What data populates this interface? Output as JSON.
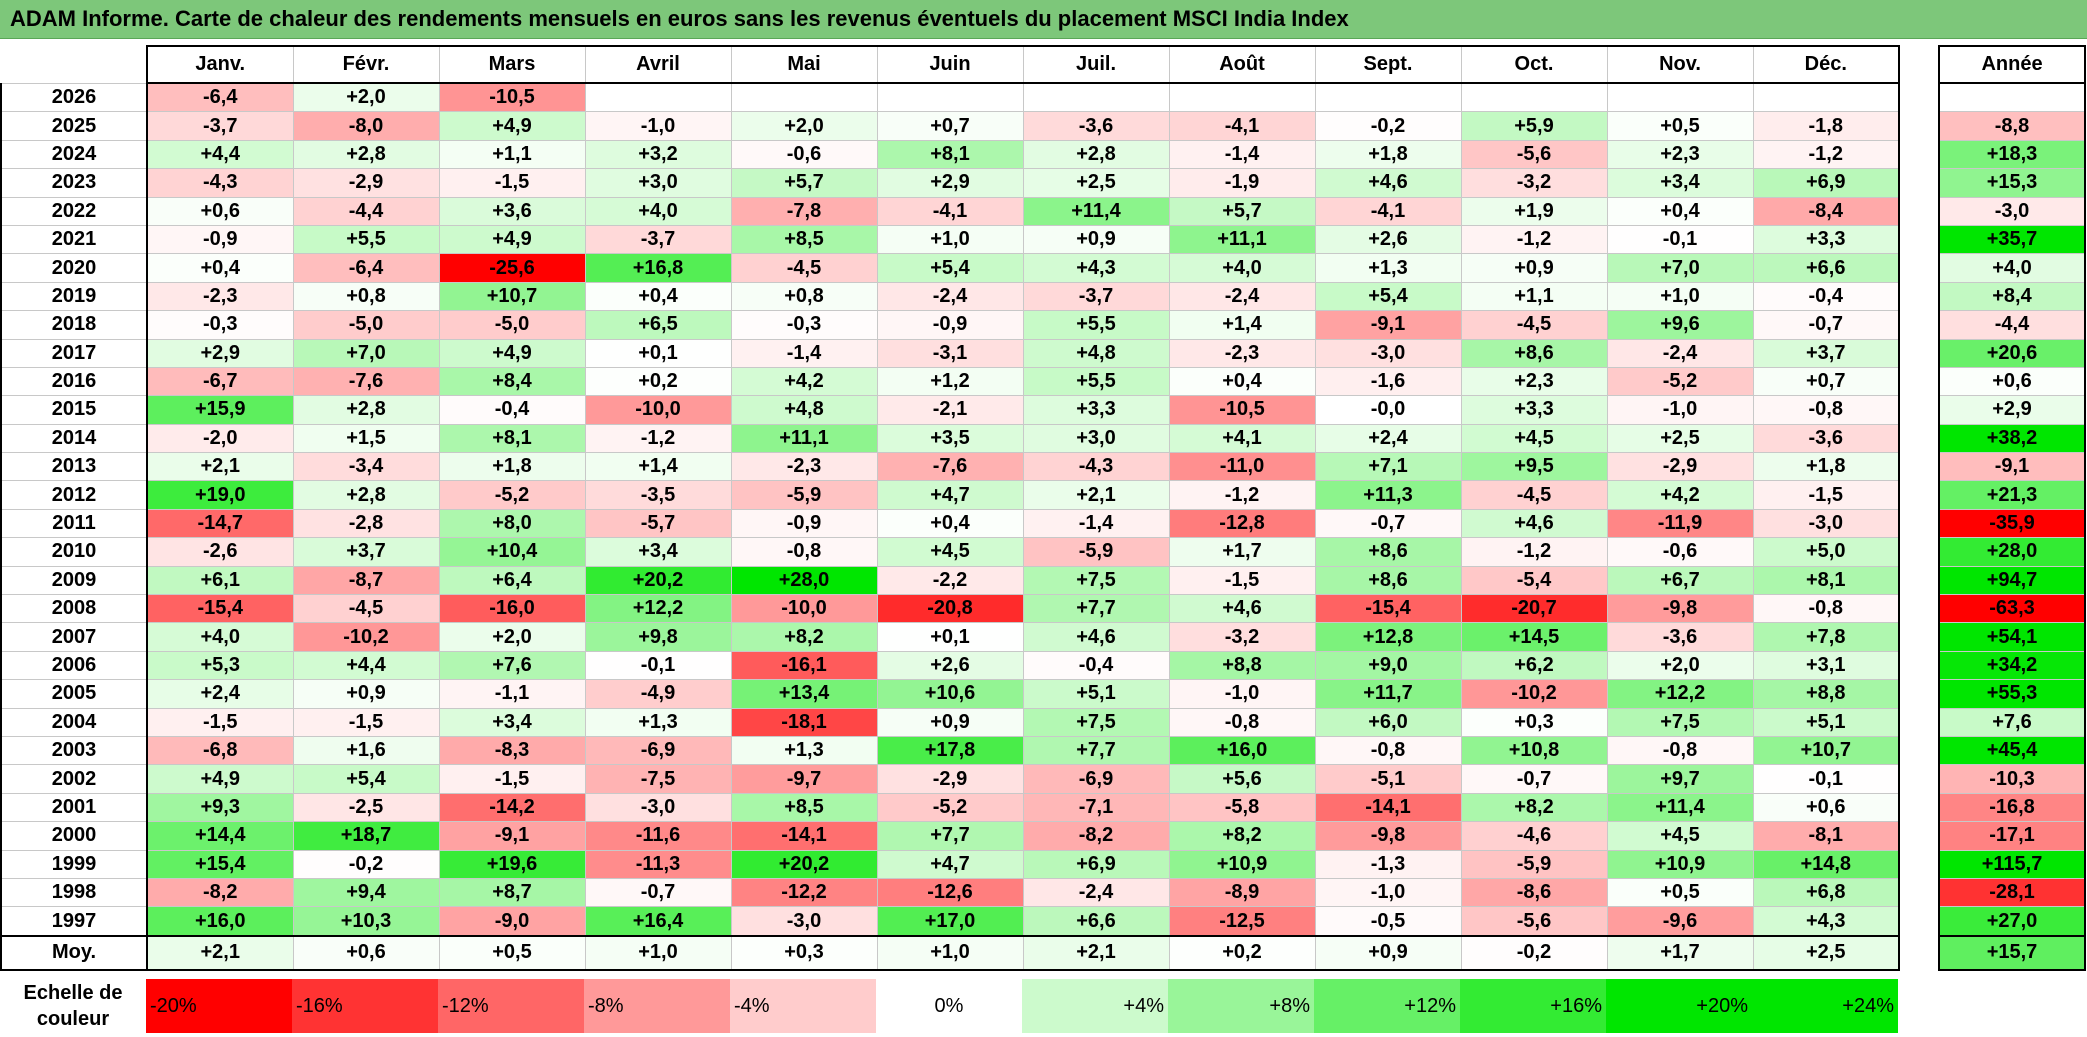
{
  "title": "ADAM Informe. Carte de chaleur des rendements mensuels en euros sans les revenus éventuels du placement MSCI India Index",
  "year_header": "Année",
  "average_label": "Moy.",
  "scale_label": "Echelle de couleur",
  "colors": {
    "title_bg": "#7dc77a",
    "negative_max": "#ff0000",
    "neutral": "#ffffff",
    "positive_max": "#00e600"
  },
  "chart_data": {
    "type": "heatmap",
    "title": "ADAM Informe. Carte de chaleur des rendements mensuels en euros sans les revenus éventuels du placement MSCI India Index",
    "months": [
      "Janv.",
      "Févr.",
      "Mars",
      "Avril",
      "Mai",
      "Juin",
      "Juil.",
      "Août",
      "Sept.",
      "Oct.",
      "Nov.",
      "Déc."
    ],
    "years": [
      "2026",
      "2025",
      "2024",
      "2023",
      "2022",
      "2021",
      "2020",
      "2019",
      "2018",
      "2017",
      "2016",
      "2015",
      "2014",
      "2013",
      "2012",
      "2011",
      "2010",
      "2009",
      "2008",
      "2007",
      "2006",
      "2005",
      "2004",
      "2003",
      "2002",
      "2001",
      "2000",
      "1999",
      "1998",
      "1997"
    ],
    "values": [
      [
        "-6,4",
        "+2,0",
        "-10,5",
        "",
        "",
        "",
        "",
        "",
        "",
        "",
        "",
        ""
      ],
      [
        "-3,7",
        "-8,0",
        "+4,9",
        "-1,0",
        "+2,0",
        "+0,7",
        "-3,6",
        "-4,1",
        "-0,2",
        "+5,9",
        "+0,5",
        "-1,8"
      ],
      [
        "+4,4",
        "+2,8",
        "+1,1",
        "+3,2",
        "-0,6",
        "+8,1",
        "+2,8",
        "-1,4",
        "+1,8",
        "-5,6",
        "+2,3",
        "-1,2"
      ],
      [
        "-4,3",
        "-2,9",
        "-1,5",
        "+3,0",
        "+5,7",
        "+2,9",
        "+2,5",
        "-1,9",
        "+4,6",
        "-3,2",
        "+3,4",
        "+6,9"
      ],
      [
        "+0,6",
        "-4,4",
        "+3,6",
        "+4,0",
        "-7,8",
        "-4,1",
        "+11,4",
        "+5,7",
        "-4,1",
        "+1,9",
        "+0,4",
        "-8,4"
      ],
      [
        "-0,9",
        "+5,5",
        "+4,9",
        "-3,7",
        "+8,5",
        "+1,0",
        "+0,9",
        "+11,1",
        "+2,6",
        "-1,2",
        "-0,1",
        "+3,3"
      ],
      [
        "+0,4",
        "-6,4",
        "-25,6",
        "+16,8",
        "-4,5",
        "+5,4",
        "+4,3",
        "+4,0",
        "+1,3",
        "+0,9",
        "+7,0",
        "+6,6"
      ],
      [
        "-2,3",
        "+0,8",
        "+10,7",
        "+0,4",
        "+0,8",
        "-2,4",
        "-3,7",
        "-2,4",
        "+5,4",
        "+1,1",
        "+1,0",
        "-0,4"
      ],
      [
        "-0,3",
        "-5,0",
        "-5,0",
        "+6,5",
        "-0,3",
        "-0,9",
        "+5,5",
        "+1,4",
        "-9,1",
        "-4,5",
        "+9,6",
        "-0,7"
      ],
      [
        "+2,9",
        "+7,0",
        "+4,9",
        "+0,1",
        "-1,4",
        "-3,1",
        "+4,8",
        "-2,3",
        "-3,0",
        "+8,6",
        "-2,4",
        "+3,7"
      ],
      [
        "-6,7",
        "-7,6",
        "+8,4",
        "+0,2",
        "+4,2",
        "+1,2",
        "+5,5",
        "+0,4",
        "-1,6",
        "+2,3",
        "-5,2",
        "+0,7"
      ],
      [
        "+15,9",
        "+2,8",
        "-0,4",
        "-10,0",
        "+4,8",
        "-2,1",
        "+3,3",
        "-10,5",
        "-0,0",
        "+3,3",
        "-1,0",
        "-0,8"
      ],
      [
        "-2,0",
        "+1,5",
        "+8,1",
        "-1,2",
        "+11,1",
        "+3,5",
        "+3,0",
        "+4,1",
        "+2,4",
        "+4,5",
        "+2,5",
        "-3,6"
      ],
      [
        "+2,1",
        "-3,4",
        "+1,8",
        "+1,4",
        "-2,3",
        "-7,6",
        "-4,3",
        "-11,0",
        "+7,1",
        "+9,5",
        "-2,9",
        "+1,8"
      ],
      [
        "+19,0",
        "+2,8",
        "-5,2",
        "-3,5",
        "-5,9",
        "+4,7",
        "+2,1",
        "-1,2",
        "+11,3",
        "-4,5",
        "+4,2",
        "-1,5"
      ],
      [
        "-14,7",
        "-2,8",
        "+8,0",
        "-5,7",
        "-0,9",
        "+0,4",
        "-1,4",
        "-12,8",
        "-0,7",
        "+4,6",
        "-11,9",
        "-3,0"
      ],
      [
        "-2,6",
        "+3,7",
        "+10,4",
        "+3,4",
        "-0,8",
        "+4,5",
        "-5,9",
        "+1,7",
        "+8,6",
        "-1,2",
        "-0,6",
        "+5,0"
      ],
      [
        "+6,1",
        "-8,7",
        "+6,4",
        "+20,2",
        "+28,0",
        "-2,2",
        "+7,5",
        "-1,5",
        "+8,6",
        "-5,4",
        "+6,7",
        "+8,1"
      ],
      [
        "-15,4",
        "-4,5",
        "-16,0",
        "+12,2",
        "-10,0",
        "-20,8",
        "+7,7",
        "+4,6",
        "-15,4",
        "-20,7",
        "-9,8",
        "-0,8"
      ],
      [
        "+4,0",
        "-10,2",
        "+2,0",
        "+9,8",
        "+8,2",
        "+0,1",
        "+4,6",
        "-3,2",
        "+12,8",
        "+14,5",
        "-3,6",
        "+7,8"
      ],
      [
        "+5,3",
        "+4,4",
        "+7,6",
        "-0,1",
        "-16,1",
        "+2,6",
        "-0,4",
        "+8,8",
        "+9,0",
        "+6,2",
        "+2,0",
        "+3,1"
      ],
      [
        "+2,4",
        "+0,9",
        "-1,1",
        "-4,9",
        "+13,4",
        "+10,6",
        "+5,1",
        "-1,0",
        "+11,7",
        "-10,2",
        "+12,2",
        "+8,8"
      ],
      [
        "-1,5",
        "-1,5",
        "+3,4",
        "+1,3",
        "-18,1",
        "+0,9",
        "+7,5",
        "-0,8",
        "+6,0",
        "+0,3",
        "+7,5",
        "+5,1"
      ],
      [
        "-6,8",
        "+1,6",
        "-8,3",
        "-6,9",
        "+1,3",
        "+17,8",
        "+7,7",
        "+16,0",
        "-0,8",
        "+10,8",
        "-0,8",
        "+10,7"
      ],
      [
        "+4,9",
        "+5,4",
        "-1,5",
        "-7,5",
        "-9,7",
        "-2,9",
        "-6,9",
        "+5,6",
        "-5,1",
        "-0,7",
        "+9,7",
        "-0,1"
      ],
      [
        "+9,3",
        "-2,5",
        "-14,2",
        "-3,0",
        "+8,5",
        "-5,2",
        "-7,1",
        "-5,8",
        "-14,1",
        "+8,2",
        "+11,4",
        "+0,6"
      ],
      [
        "+14,4",
        "+18,7",
        "-9,1",
        "-11,6",
        "-14,1",
        "+7,7",
        "-8,2",
        "+8,2",
        "-9,8",
        "-4,6",
        "+4,5",
        "-8,1"
      ],
      [
        "+15,4",
        "-0,2",
        "+19,6",
        "-11,3",
        "+20,2",
        "+4,7",
        "+6,9",
        "+10,9",
        "-1,3",
        "-5,9",
        "+10,9",
        "+14,8"
      ],
      [
        "-8,2",
        "+9,4",
        "+8,7",
        "-0,7",
        "-12,2",
        "-12,6",
        "-2,4",
        "-8,9",
        "-1,0",
        "-8,6",
        "+0,5",
        "+6,8"
      ],
      [
        "+16,0",
        "+10,3",
        "-9,0",
        "+16,4",
        "-3,0",
        "+17,0",
        "+6,6",
        "-12,5",
        "-0,5",
        "-5,6",
        "-9,6",
        "+4,3"
      ]
    ],
    "annual": [
      "",
      "-8,8",
      "+18,3",
      "+15,3",
      "-3,0",
      "+35,7",
      "+4,0",
      "+8,4",
      "-4,4",
      "+20,6",
      "+0,6",
      "+2,9",
      "+38,2",
      "-9,1",
      "+21,3",
      "-35,9",
      "+28,0",
      "+94,7",
      "-63,3",
      "+54,1",
      "+34,2",
      "+55,3",
      "+7,6",
      "+45,4",
      "-10,3",
      "-16,8",
      "-17,1",
      "+115,7",
      "-28,1",
      "+27,0"
    ],
    "averages": [
      "+2,1",
      "+0,6",
      "+0,5",
      "+1,0",
      "+0,3",
      "+1,0",
      "+2,1",
      "+0,2",
      "+0,9",
      "-0,2",
      "+1,7",
      "+2,5"
    ],
    "average_annual": "+15,7",
    "scale": [
      "-20%",
      "-16%",
      "-12%",
      "-8%",
      "-4%",
      "0%",
      "+4%",
      "+8%",
      "+12%",
      "+16%",
      "+20%",
      "+24%"
    ],
    "scale_values": [
      -20,
      -16,
      -12,
      -8,
      -4,
      0,
      4,
      8,
      12,
      16,
      20,
      24
    ],
    "color_range": [
      -20,
      24
    ]
  }
}
